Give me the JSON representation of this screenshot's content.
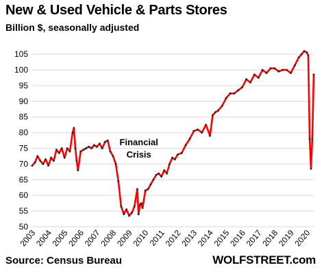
{
  "header": {
    "title": "New & Used Vehicle & Parts Stores",
    "subtitle": "Billion $, seasonally adjusted"
  },
  "footer": {
    "source": "Source: Census Bureau",
    "brand": "WOLFSTREET.com"
  },
  "colors": {
    "line": "#ff0000",
    "marker": "#2a2a2a",
    "grid": "#d9d9d9"
  },
  "chart_data": {
    "type": "line",
    "title": "New & Used Vehicle & Parts Stores",
    "subtitle": "Billion $, seasonally adjusted",
    "ylim": [
      50,
      107
    ],
    "xlim": [
      2003.0,
      2020.42
    ],
    "yticks": [
      50,
      55,
      60,
      65,
      70,
      75,
      80,
      85,
      90,
      95,
      100,
      105
    ],
    "xticks": [
      "2003",
      "2004",
      "2005",
      "2006",
      "2007",
      "2008",
      "2009",
      "2010",
      "2011",
      "2012",
      "2013",
      "2014",
      "2015",
      "2016",
      "2017",
      "2018",
      "2019",
      "2020"
    ],
    "grid": "horizontal",
    "annotations": [
      {
        "text": [
          "Financial",
          "Crisis"
        ],
        "x": 2009.6,
        "y": 76
      }
    ],
    "series": [
      {
        "x": [
          2003.0,
          2003.17,
          2003.33,
          2003.5,
          2003.67,
          2003.83,
          2004.0,
          2004.17,
          2004.33,
          2004.5,
          2004.67,
          2004.83,
          2005.0,
          2005.17,
          2005.33,
          2005.5,
          2005.58,
          2005.67,
          2005.75,
          2005.83,
          2006.0,
          2006.17,
          2006.33,
          2006.5,
          2006.67,
          2006.83,
          2007.0,
          2007.17,
          2007.33,
          2007.5,
          2007.67,
          2007.83,
          2008.0,
          2008.17,
          2008.33,
          2008.5,
          2008.67,
          2008.83,
          2009.0,
          2009.17,
          2009.33,
          2009.5,
          2009.58,
          2009.67,
          2009.75,
          2009.83,
          2010.0,
          2010.17,
          2010.33,
          2010.5,
          2010.67,
          2010.83,
          2011.0,
          2011.17,
          2011.33,
          2011.5,
          2011.67,
          2011.83,
          2012.0,
          2012.25,
          2012.5,
          2012.75,
          2013.0,
          2013.25,
          2013.5,
          2013.75,
          2014.0,
          2014.17,
          2014.33,
          2014.5,
          2014.75,
          2015.0,
          2015.25,
          2015.5,
          2015.75,
          2016.0,
          2016.25,
          2016.5,
          2016.75,
          2017.0,
          2017.25,
          2017.5,
          2017.75,
          2018.0,
          2018.25,
          2018.5,
          2018.75,
          2019.0,
          2019.25,
          2019.5,
          2019.67,
          2019.83,
          2020.0,
          2020.08,
          2020.17,
          2020.25,
          2020.33,
          2020.42
        ],
        "values": [
          69.5,
          70.5,
          72.5,
          71.0,
          70.0,
          71.5,
          69.5,
          72.0,
          71.0,
          74.5,
          73.5,
          75.0,
          72.0,
          75.0,
          74.0,
          80.0,
          81.5,
          75.0,
          71.0,
          68.0,
          74.0,
          74.5,
          75.0,
          75.5,
          75.0,
          76.0,
          75.5,
          76.5,
          75.0,
          77.0,
          77.5,
          74.0,
          72.5,
          70.0,
          64.5,
          56.5,
          54.0,
          55.5,
          53.5,
          54.5,
          56.5,
          62.0,
          54.0,
          57.0,
          57.5,
          56.0,
          61.5,
          62.0,
          63.5,
          65.0,
          66.5,
          67.0,
          66.0,
          68.0,
          67.0,
          70.0,
          72.0,
          71.5,
          73.0,
          73.5,
          76.0,
          78.0,
          80.5,
          81.0,
          80.0,
          82.5,
          79.0,
          85.5,
          86.5,
          87.0,
          88.5,
          91.0,
          92.5,
          92.5,
          93.5,
          94.5,
          97.0,
          96.0,
          98.5,
          97.5,
          100.0,
          99.0,
          100.5,
          100.5,
          99.5,
          100.0,
          100.0,
          99.0,
          101.5,
          104.0,
          105.0,
          106.0,
          105.5,
          104.5,
          78.0,
          68.5,
          78.0,
          98.5
        ]
      }
    ]
  }
}
